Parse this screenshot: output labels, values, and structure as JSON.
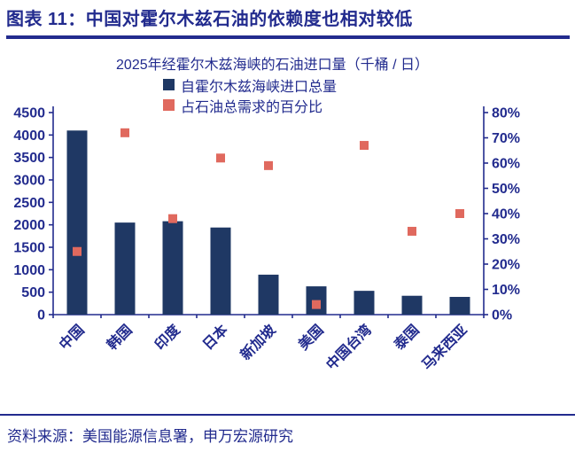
{
  "header": {
    "title": "图表 11：中国对霍尔木兹石油的依赖度也相对较低"
  },
  "footer": {
    "source": "资料来源：美国能源信息署，申万宏源研究"
  },
  "colors": {
    "navy_text": "#222b8e",
    "axis": "#222b8e",
    "bar_navy": "#1f3864",
    "marker_red": "#e0695e",
    "background": "#ffffff"
  },
  "chart_data": {
    "type": "bar",
    "title": "2025年经霍尔木兹海峡的石油进口量（千桶 / 日）",
    "categories": [
      "中国",
      "韩国",
      "印度",
      "日本",
      "新加坡",
      "美国",
      "中国台湾",
      "泰国",
      "马来西亚"
    ],
    "series": [
      {
        "name": "自霍尔木兹海峡进口总量",
        "type": "bar",
        "axis": "left",
        "color": "#1f3864",
        "values": [
          4100,
          2050,
          2080,
          1940,
          890,
          630,
          530,
          420,
          395
        ]
      },
      {
        "name": "占石油总需求的百分比",
        "type": "scatter",
        "marker": "square",
        "axis": "right",
        "unit": "%",
        "color": "#e0695e",
        "values": [
          25,
          72,
          38,
          62,
          59,
          4,
          67,
          33,
          40
        ]
      }
    ],
    "left_axis": {
      "min": 0,
      "max": 4500,
      "step": 500,
      "tick_labels": [
        "4500",
        "4000",
        "3500",
        "3000",
        "2500",
        "2000",
        "1500",
        "1000",
        "500",
        "0"
      ]
    },
    "right_axis": {
      "min": 0,
      "max": 80,
      "step": 10,
      "tick_labels": [
        "80%",
        "70%",
        "60%",
        "50%",
        "40%",
        "30%",
        "20%",
        "10%",
        "0%"
      ]
    },
    "legend_position": "top-center",
    "grid": false
  }
}
